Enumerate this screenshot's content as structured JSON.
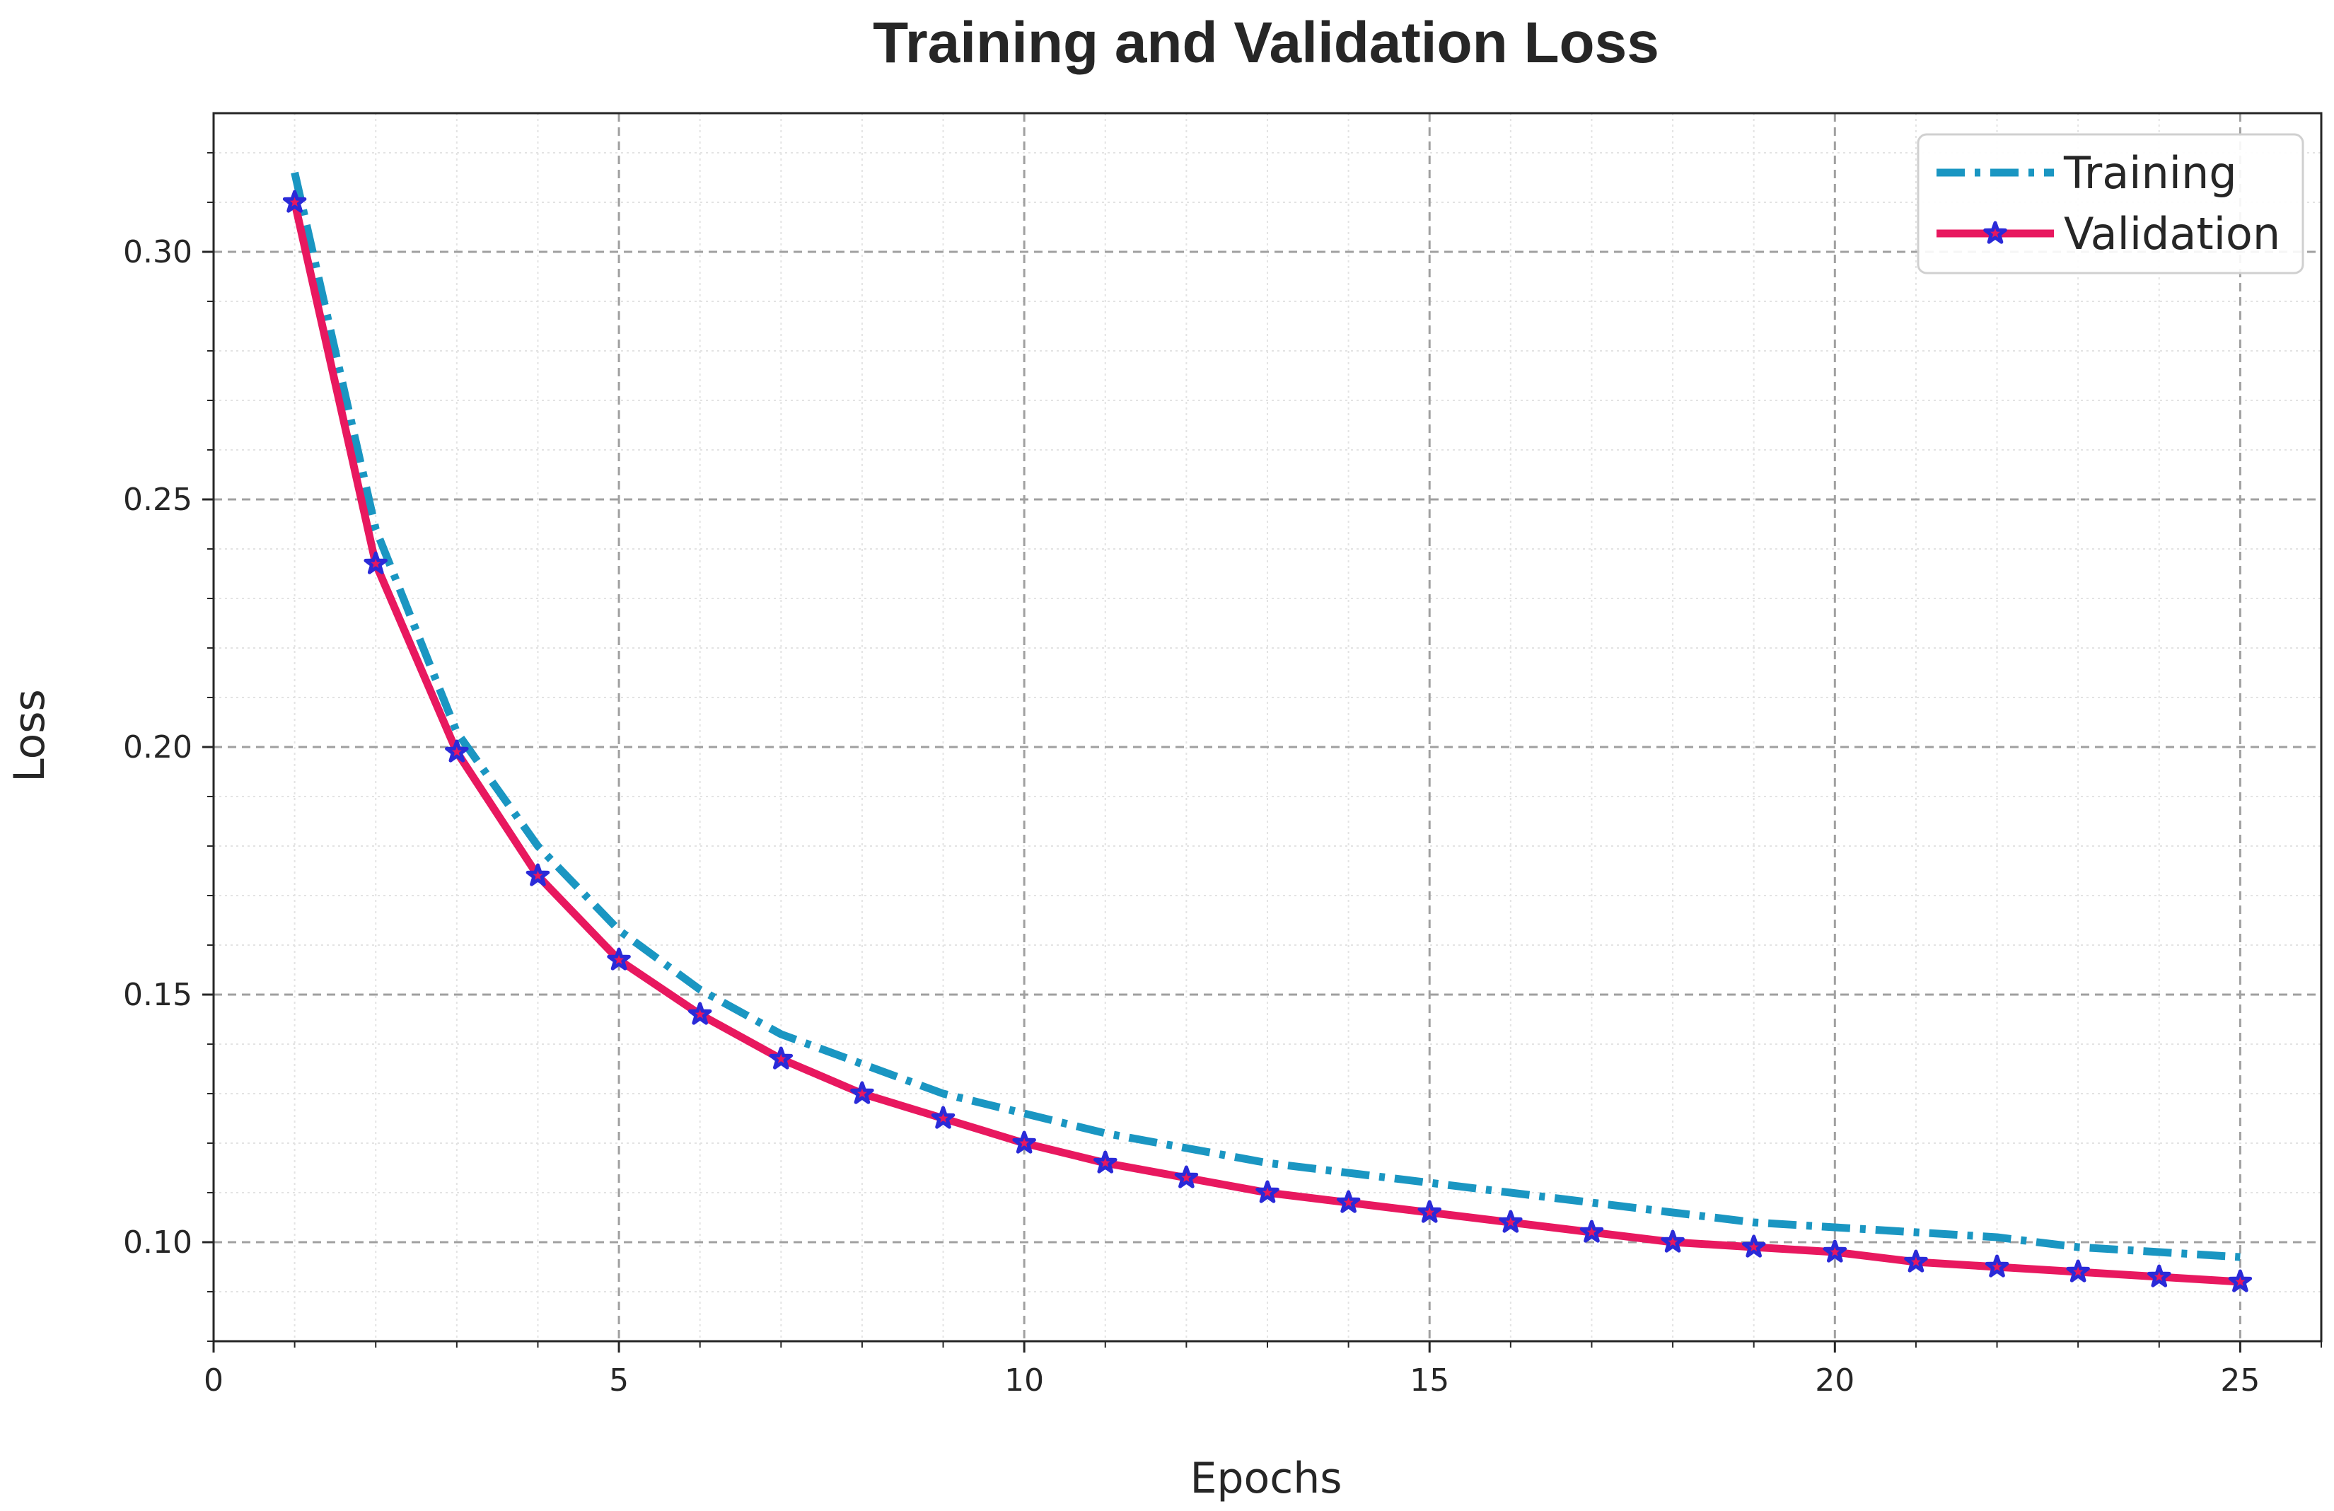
{
  "chart_data": {
    "type": "line",
    "title": "Training and Validation Loss",
    "xlabel": "Epochs",
    "ylabel": "Loss",
    "xlim": [
      0,
      26
    ],
    "ylim": [
      0.08,
      0.328
    ],
    "xticks": [
      0,
      5,
      10,
      15,
      20,
      25
    ],
    "xtick_labels": [
      "0",
      "5",
      "10",
      "15",
      "20",
      "25"
    ],
    "yticks": [
      0.1,
      0.15,
      0.2,
      0.25,
      0.3
    ],
    "ytick_labels": [
      "0.10",
      "0.15",
      "0.20",
      "0.25",
      "0.30"
    ],
    "grid": true,
    "legend_position": "top-right",
    "x": [
      1,
      2,
      3,
      4,
      5,
      6,
      7,
      8,
      9,
      10,
      11,
      12,
      13,
      14,
      15,
      16,
      17,
      18,
      19,
      20,
      21,
      22,
      23,
      24,
      25
    ],
    "series": [
      {
        "name": "Training",
        "color": "#1a96c2",
        "style": "dash-dot",
        "values": [
          0.316,
          0.244,
          0.203,
          0.18,
          0.163,
          0.151,
          0.142,
          0.136,
          0.13,
          0.126,
          0.122,
          0.119,
          0.116,
          0.114,
          0.112,
          0.11,
          0.108,
          0.106,
          0.104,
          0.103,
          0.102,
          0.101,
          0.099,
          0.098,
          0.097
        ]
      },
      {
        "name": "Validation",
        "color": "#e8185f",
        "marker_color": "#2a2ad8",
        "style": "solid-star",
        "values": [
          0.31,
          0.237,
          0.199,
          0.174,
          0.157,
          0.146,
          0.137,
          0.13,
          0.125,
          0.12,
          0.116,
          0.113,
          0.11,
          0.108,
          0.106,
          0.104,
          0.102,
          0.1,
          0.099,
          0.098,
          0.096,
          0.095,
          0.094,
          0.093,
          0.092
        ]
      }
    ]
  }
}
